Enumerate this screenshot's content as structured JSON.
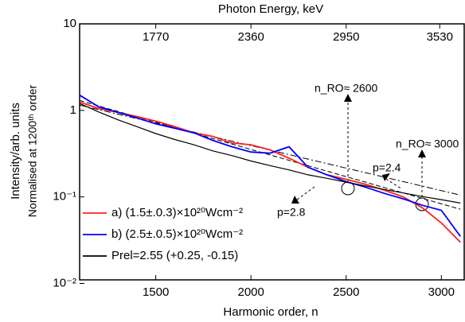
{
  "chart_data": {
    "type": "line",
    "title": "Photon Energy, keV",
    "xlabel": "Harmonic order, n",
    "ylabel": "Intensity/arb. units",
    "ylabel2": "Normalised at 1200ᵗʰ order",
    "x": [
      1100,
      1200,
      1300,
      1400,
      1500,
      1600,
      1700,
      1800,
      1900,
      2000,
      2100,
      2200,
      2300,
      2400,
      2500,
      2600,
      2700,
      2800,
      2900,
      3000,
      3100
    ],
    "series": [
      {
        "name": "a) (1.5±.0.3)×10²⁰Wcm⁻²",
        "color": "#ff2020",
        "values": [
          1.25,
          1.05,
          0.95,
          0.85,
          0.75,
          0.65,
          0.55,
          0.5,
          0.42,
          0.4,
          0.35,
          0.28,
          0.22,
          0.18,
          0.16,
          0.14,
          0.12,
          0.1,
          0.075,
          0.05,
          0.03
        ]
      },
      {
        "name": "b) (2.5±.0.5)×10²⁰Wcm⁻²",
        "color": "#0000ff",
        "values": [
          1.5,
          1.1,
          0.95,
          0.82,
          0.7,
          0.62,
          0.55,
          0.45,
          0.38,
          0.33,
          0.32,
          0.38,
          0.22,
          0.18,
          0.15,
          0.13,
          0.11,
          0.095,
          0.08,
          0.07,
          0.035
        ]
      },
      {
        "name": "Prel=2.55 (+0.25, -0.15)",
        "color": "#000000",
        "values": [
          1.2,
          0.96,
          0.78,
          0.65,
          0.54,
          0.46,
          0.4,
          0.34,
          0.3,
          0.26,
          0.23,
          0.205,
          0.18,
          0.164,
          0.148,
          0.134,
          0.122,
          0.111,
          0.101,
          0.093,
          0.085
        ]
      }
    ],
    "fit_lines": [
      {
        "name": "p=2.4",
        "x": [
          1100,
          3100
        ],
        "values": [
          1.15,
          0.105
        ]
      },
      {
        "name": "p=2.8",
        "x": [
          1100,
          3100
        ],
        "values": [
          1.3,
          0.072
        ]
      }
    ],
    "annotations": [
      "n_RO≈ 2600",
      "n_RO≈ 3000"
    ],
    "xlim": [
      1100,
      3120
    ],
    "xticks": [
      1500,
      2000,
      2500,
      3000
    ],
    "x2lim": [
      1298,
      3681.6
    ],
    "x2ticks": [
      1770,
      2360,
      2950,
      3530
    ],
    "ylim": [
      0.011,
      10
    ],
    "yticks": [
      10,
      1,
      {
        "value": 0.1,
        "label": "10⁻¹"
      },
      {
        "value": 0.01,
        "label": "10⁻²"
      }
    ],
    "log_y": true,
    "legend": "lower left"
  }
}
